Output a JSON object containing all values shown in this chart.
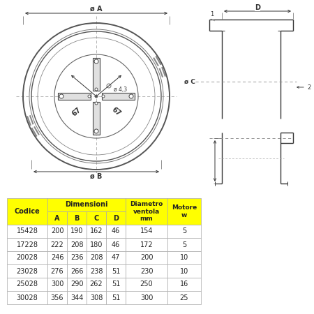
{
  "bg_color": "#ffffff",
  "line_color": "#333333",
  "dim_color": "#333333",
  "yellow": "#ffff00",
  "white": "#ffffff",
  "border_color": "#aaaaaa",
  "codice_col": [
    "15428",
    "17228",
    "20028",
    "23028",
    "25028",
    "30028"
  ],
  "A_col": [
    "200",
    "222",
    "246",
    "276",
    "300",
    "356"
  ],
  "B_col": [
    "190",
    "208",
    "236",
    "266",
    "290",
    "344"
  ],
  "C_col": [
    "162",
    "180",
    "208",
    "238",
    "262",
    "308"
  ],
  "D_col": [
    "46",
    "46",
    "47",
    "51",
    "51",
    "51"
  ],
  "diam_ventola": [
    "154",
    "172",
    "200",
    "230",
    "250",
    "300"
  ],
  "motore_w": [
    "5",
    "5",
    "10",
    "10",
    "16",
    "25"
  ]
}
